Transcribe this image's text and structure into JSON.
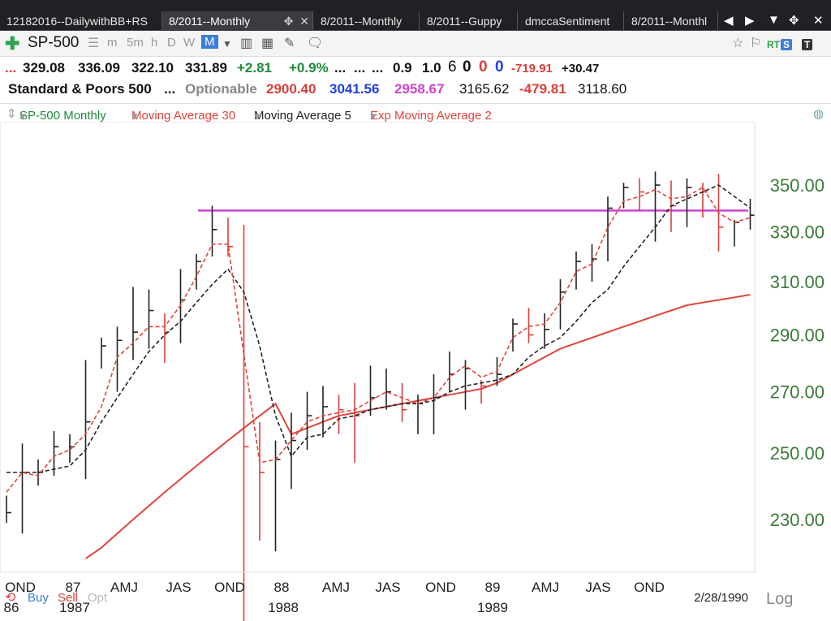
{
  "tabs": [
    {
      "label": "12182016--DailywithBB+RS",
      "active": false
    },
    {
      "label": "8/2011--Monthly",
      "active": true
    },
    {
      "label": "8/2011--Monthly",
      "active": false
    },
    {
      "label": "8/2011--Guppy",
      "active": false
    },
    {
      "label": "dmccaSentiment",
      "active": false
    },
    {
      "label": "8/2011--Monthl",
      "active": false
    }
  ],
  "toolbar": {
    "symbol": "SP-500",
    "intervals": [
      "m",
      "5m",
      "h",
      "D",
      "W",
      "M"
    ],
    "selected_interval": "M",
    "badges": [
      "RT",
      "S",
      "T"
    ]
  },
  "quote_row1": {
    "open": "329.08",
    "high": "336.09",
    "low": "322.10",
    "close": "331.89",
    "change": "+2.81",
    "change_pct": "+0.9%",
    "dots1": "...",
    "dots2": "...",
    "dots3": "...",
    "v1": "0.9",
    "v2": "1.0",
    "v3": "6",
    "z1": "0",
    "z2": "0",
    "z3": "0",
    "neg": "-719.91",
    "pos": "+30.47",
    "lead": "..."
  },
  "quote_row2": {
    "name": "Standard & Poors 500",
    "dots": "...",
    "optionable": "Optionable",
    "p1": "2900.40",
    "p2": "3041.56",
    "p3": "2958.67",
    "p4": "3165.62",
    "p5": "-479.81",
    "p6": "3118.60"
  },
  "legend": [
    {
      "label": "SP-500 Monthly",
      "color": "#1e8a3a"
    },
    {
      "label": "Moving Average 30",
      "color": "#e0443a"
    },
    {
      "label": "Moving Average 5",
      "color": "#222222"
    },
    {
      "label": "Exp Moving Average 2",
      "color": "#e0443a"
    }
  ],
  "chart_data": {
    "type": "line",
    "price_labels": [
      "350.00",
      "330.00",
      "310.00",
      "290.00",
      "270.00",
      "250.00",
      "230.00"
    ],
    "price_ticks": [
      350,
      330,
      310,
      290,
      270,
      250,
      230
    ],
    "scale": "log",
    "x_labels_top": [
      "OND",
      "87",
      "AMJ",
      "JAS",
      "OND",
      "88",
      "AMJ",
      "JAS",
      "OND",
      "89",
      "AMJ",
      "JAS",
      "OND"
    ],
    "x_labels_bottom": [
      "86",
      "1987",
      "1988",
      "1989"
    ],
    "date_label": "2/28/1990",
    "scale_label": "Log",
    "buttons": {
      "buy": "Buy",
      "sell": "Sell",
      "opt": "Opt"
    },
    "reference_line": 339,
    "bars": [
      [
        237,
        229,
        232
      ],
      [
        253,
        226,
        244
      ],
      [
        248,
        240,
        244
      ],
      [
        257,
        243,
        252
      ],
      [
        256,
        247,
        252
      ],
      [
        281,
        242,
        260
      ],
      [
        289,
        278,
        286
      ],
      [
        293,
        270,
        288
      ],
      [
        308,
        281,
        291
      ],
      [
        307,
        285,
        299
      ],
      [
        298,
        280,
        291
      ],
      [
        315,
        287,
        303
      ],
      [
        321,
        307,
        318
      ],
      [
        341,
        320,
        331
      ],
      [
        336,
        320,
        324
      ],
      [
        333,
        200,
        252
      ],
      [
        260,
        224,
        244
      ],
      [
        254,
        221,
        248
      ],
      [
        263,
        239,
        254
      ],
      [
        270,
        251,
        262
      ],
      [
        272,
        255,
        265
      ],
      [
        269,
        256,
        264
      ],
      [
        273,
        247,
        262
      ],
      [
        279,
        262,
        268
      ],
      [
        278,
        264,
        270
      ],
      [
        273,
        260,
        264
      ],
      [
        269,
        256,
        266
      ],
      [
        276,
        256,
        268
      ],
      [
        284,
        270,
        276
      ],
      [
        281,
        264,
        278
      ],
      [
        274,
        266,
        272
      ],
      [
        282,
        272,
        276
      ],
      [
        296,
        284,
        294
      ],
      [
        300,
        287,
        290
      ],
      [
        298,
        285,
        292
      ],
      [
        311,
        292,
        306
      ],
      [
        322,
        307,
        318
      ],
      [
        325,
        310,
        319
      ],
      [
        345,
        318,
        340
      ],
      [
        351,
        340,
        349
      ],
      [
        353,
        339,
        347
      ],
      [
        356,
        326,
        350
      ],
      [
        352,
        330,
        341
      ],
      [
        353,
        332,
        349
      ],
      [
        351,
        336,
        347
      ],
      [
        355,
        322,
        332
      ],
      [
        335,
        324,
        334
      ],
      [
        344,
        331,
        337
      ]
    ],
    "ma5": [
      244,
      244,
      244,
      245,
      246,
      251,
      260,
      268,
      276,
      284,
      290,
      295,
      302,
      309,
      315,
      306,
      286,
      262,
      249,
      255,
      256,
      261,
      262,
      264,
      265,
      266,
      266,
      267,
      270,
      272,
      273,
      274,
      276,
      282,
      286,
      289,
      295,
      302,
      307,
      316,
      324,
      332,
      341,
      344,
      347,
      350,
      345,
      340
    ],
    "ema2": [
      238,
      244,
      243,
      249,
      251,
      256,
      265,
      282,
      287,
      293,
      293,
      301,
      312,
      325,
      325,
      283,
      247,
      248,
      254,
      260,
      262,
      263,
      264,
      267,
      270,
      268,
      266,
      268,
      275,
      279,
      275,
      277,
      289,
      293,
      294,
      302,
      314,
      317,
      332,
      343,
      345,
      348,
      344,
      345,
      349,
      338,
      334,
      336
    ],
    "ma30": [
      null,
      null,
      null,
      null,
      null,
      219,
      222,
      226,
      230,
      234,
      238,
      242,
      246,
      250,
      254,
      258,
      262,
      266,
      256,
      258,
      260,
      262,
      263,
      264,
      265,
      266,
      267,
      268,
      269,
      270,
      271,
      273,
      276,
      279,
      282,
      285,
      287,
      289,
      291,
      293,
      295,
      297,
      299,
      301,
      302,
      303,
      304,
      305
    ],
    "series_colors": {
      "ma30": "#e0443a",
      "ma5": "#222222",
      "ema2": "#e0443a",
      "ref": "#cc44cc",
      "bar_up": "#222222",
      "bar_down": "#d8403a"
    }
  }
}
